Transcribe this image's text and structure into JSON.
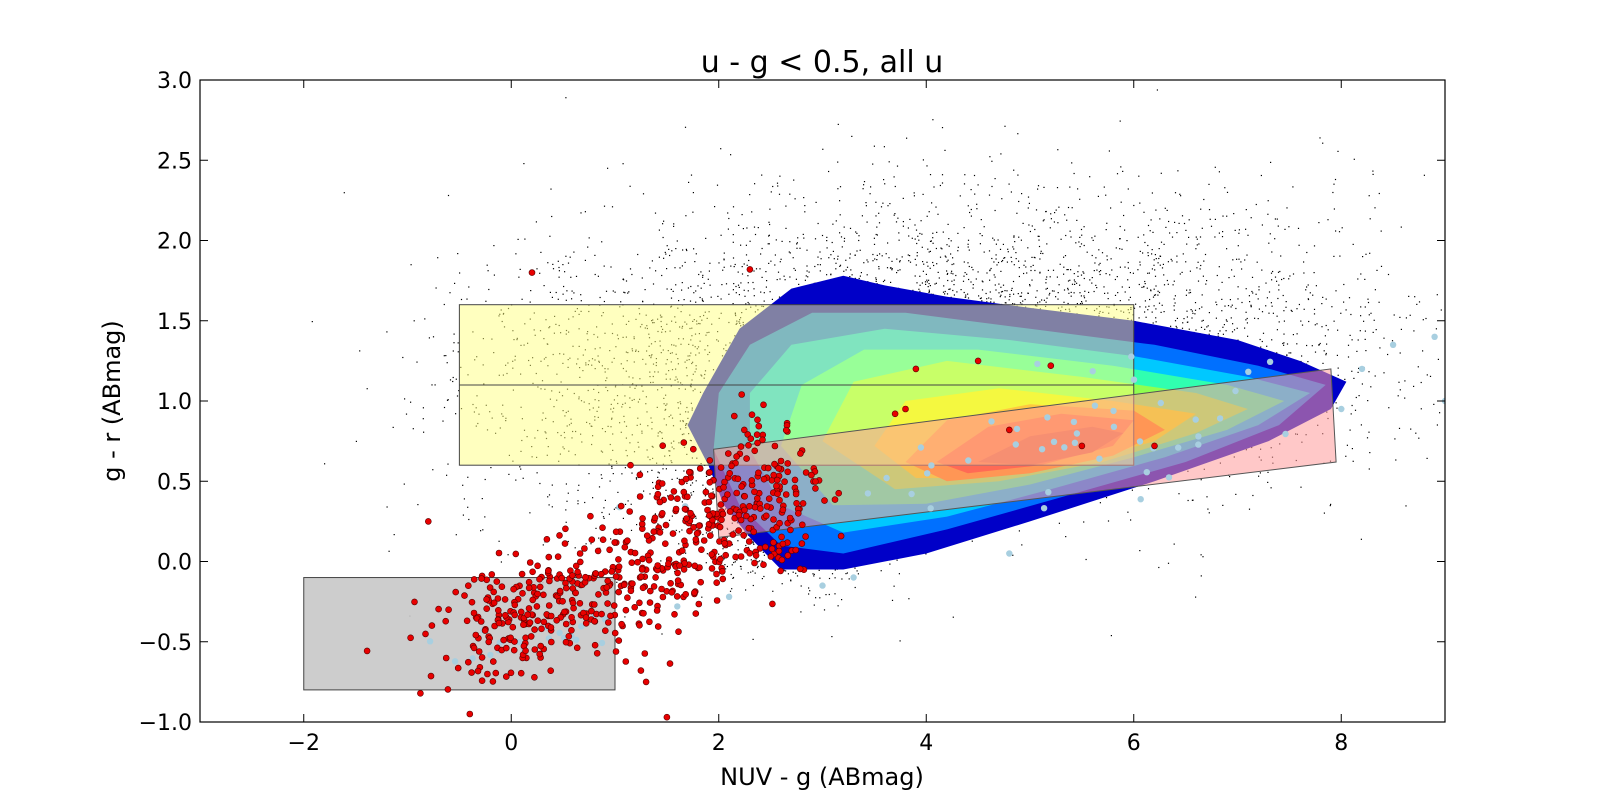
{
  "chart_data": {
    "type": "scatter",
    "title": "u - g < 0.5, all u",
    "xlabel": "NUV - g (ABmag)",
    "ylabel": "g - r (ABmag)",
    "xlim": [
      -3,
      9
    ],
    "ylim": [
      -1.0,
      3.0
    ],
    "xticks": [
      -2,
      0,
      2,
      4,
      6,
      8
    ],
    "xtick_labels": [
      "−2",
      "0",
      "2",
      "4",
      "6",
      "8"
    ],
    "yticks": [
      -1.0,
      -0.5,
      0.0,
      0.5,
      1.0,
      1.5,
      2.0,
      2.5,
      3.0
    ],
    "ytick_labels": [
      "−1.0",
      "−0.5",
      "0.0",
      "0.5",
      "1.0",
      "1.5",
      "2.0",
      "2.5",
      "3.0"
    ],
    "grid": false,
    "colors": {
      "background_points": "#000000",
      "red_points": "#e80000",
      "light_blue_points": "#a8cfe0",
      "yellow_box": "#ffff80",
      "gray_box": "#c8c8c8",
      "red_band": "#ff9a9a",
      "contour_outer": "#0000c8"
    },
    "regions": [
      {
        "name": "yellow box",
        "x": [
          -0.5,
          6.0
        ],
        "y": [
          0.6,
          1.6
        ],
        "color": "#ffff80"
      },
      {
        "name": "gray box",
        "x": [
          -2.0,
          1.0
        ],
        "y": [
          -0.8,
          -0.1
        ],
        "color": "#c8c8c8"
      },
      {
        "name": "red band",
        "polygon": [
          [
            1.95,
            0.7
          ],
          [
            7.9,
            1.2
          ],
          [
            7.95,
            0.62
          ],
          [
            2.0,
            0.15
          ]
        ],
        "color": "#ff9a9a"
      }
    ],
    "series": [
      {
        "kind": "contour",
        "levels": [
          {
            "color": "#0000c8",
            "polygon": [
              [
                1.9,
                0.6
              ],
              [
                1.7,
                0.85
              ],
              [
                1.85,
                1.05
              ],
              [
                2.2,
                1.45
              ],
              [
                2.7,
                1.7
              ],
              [
                3.2,
                1.78
              ],
              [
                3.6,
                1.72
              ],
              [
                4.2,
                1.65
              ],
              [
                5.0,
                1.58
              ],
              [
                6.0,
                1.5
              ],
              [
                7.0,
                1.38
              ],
              [
                7.6,
                1.25
              ],
              [
                8.05,
                1.12
              ],
              [
                7.9,
                0.95
              ],
              [
                7.3,
                0.75
              ],
              [
                6.2,
                0.5
              ],
              [
                5.0,
                0.25
              ],
              [
                4.0,
                0.05
              ],
              [
                3.2,
                -0.05
              ],
              [
                2.6,
                -0.05
              ],
              [
                2.3,
                0.15
              ],
              [
                2.05,
                0.35
              ]
            ]
          },
          {
            "color": "#0070ff",
            "polygon": [
              [
                1.95,
                0.7
              ],
              [
                2.0,
                1.05
              ],
              [
                2.3,
                1.35
              ],
              [
                2.9,
                1.55
              ],
              [
                3.8,
                1.55
              ],
              [
                5.0,
                1.45
              ],
              [
                6.2,
                1.35
              ],
              [
                7.2,
                1.22
              ],
              [
                7.85,
                1.1
              ],
              [
                7.4,
                0.85
              ],
              [
                6.5,
                0.62
              ],
              [
                5.3,
                0.4
              ],
              [
                4.2,
                0.2
              ],
              [
                3.2,
                0.05
              ],
              [
                2.6,
                0.1
              ],
              [
                2.2,
                0.35
              ]
            ]
          },
          {
            "color": "#00c8ff",
            "polygon": [
              [
                2.3,
                0.7
              ],
              [
                2.3,
                1.05
              ],
              [
                2.7,
                1.35
              ],
              [
                3.6,
                1.45
              ],
              [
                4.8,
                1.38
              ],
              [
                6.0,
                1.28
              ],
              [
                7.1,
                1.15
              ],
              [
                7.7,
                1.05
              ],
              [
                7.2,
                0.85
              ],
              [
                6.3,
                0.65
              ],
              [
                5.2,
                0.45
              ],
              [
                4.2,
                0.28
              ],
              [
                3.2,
                0.18
              ],
              [
                2.6,
                0.35
              ]
            ]
          },
          {
            "color": "#30ffb0",
            "polygon": [
              [
                2.6,
                0.72
              ],
              [
                2.8,
                1.1
              ],
              [
                3.4,
                1.32
              ],
              [
                4.5,
                1.32
              ],
              [
                5.8,
                1.22
              ],
              [
                6.9,
                1.1
              ],
              [
                7.45,
                1.0
              ],
              [
                6.9,
                0.82
              ],
              [
                6.0,
                0.65
              ],
              [
                5.0,
                0.48
              ],
              [
                4.0,
                0.36
              ],
              [
                3.1,
                0.35
              ]
            ]
          },
          {
            "color": "#90ff50",
            "polygon": [
              [
                3.0,
                0.75
              ],
              [
                3.3,
                1.12
              ],
              [
                4.2,
                1.25
              ],
              [
                5.5,
                1.15
              ],
              [
                6.6,
                1.05
              ],
              [
                7.1,
                0.95
              ],
              [
                6.6,
                0.8
              ],
              [
                5.7,
                0.62
              ],
              [
                4.7,
                0.5
              ],
              [
                3.7,
                0.45
              ]
            ]
          },
          {
            "color": "#e8f000",
            "polygon": [
              [
                3.5,
                0.72
              ],
              [
                3.8,
                1.0
              ],
              [
                4.7,
                1.08
              ],
              [
                5.8,
                1.0
              ],
              [
                6.6,
                0.92
              ],
              [
                6.2,
                0.75
              ],
              [
                5.4,
                0.6
              ],
              [
                4.5,
                0.52
              ],
              [
                3.9,
                0.52
              ]
            ]
          },
          {
            "color": "#ff9000",
            "polygon": [
              [
                3.8,
                0.62
              ],
              [
                4.2,
                0.88
              ],
              [
                5.0,
                0.98
              ],
              [
                6.0,
                0.94
              ],
              [
                6.3,
                0.82
              ],
              [
                5.8,
                0.66
              ],
              [
                5.0,
                0.55
              ],
              [
                4.2,
                0.5
              ]
            ]
          },
          {
            "color": "#ff3000",
            "polygon": [
              [
                4.1,
                0.62
              ],
              [
                4.6,
                0.84
              ],
              [
                5.3,
                0.92
              ],
              [
                6.0,
                0.88
              ],
              [
                5.8,
                0.72
              ],
              [
                5.1,
                0.6
              ],
              [
                4.4,
                0.55
              ]
            ]
          },
          {
            "color": "#d80000",
            "polygon": [
              [
                4.5,
                0.62
              ],
              [
                5.0,
                0.78
              ],
              [
                5.6,
                0.84
              ],
              [
                5.9,
                0.8
              ],
              [
                5.6,
                0.68
              ],
              [
                5.0,
                0.6
              ]
            ]
          }
        ]
      },
      {
        "name": "",
        "kind": "points",
        "color": "#e80000",
        "clusters": [
          {
            "center": [
              0.3,
              -0.3
            ],
            "spread": [
              0.55,
              0.18
            ],
            "slope": 0.18,
            "count": 260
          },
          {
            "center": [
              1.7,
              0.15
            ],
            "spread": [
              0.5,
              0.25
            ],
            "slope": 0.3,
            "count": 260
          },
          {
            "center": [
              2.5,
              0.45
            ],
            "spread": [
              0.25,
              0.25
            ],
            "slope": 0.0,
            "count": 120
          }
        ],
        "outliers": [
          [
            0.2,
            1.8
          ],
          [
            2.3,
            1.82
          ],
          [
            -0.8,
            0.25
          ],
          [
            1.25,
            -0.68
          ],
          [
            1.3,
            -0.75
          ],
          [
            1.5,
            -0.97
          ],
          [
            -0.4,
            -0.95
          ],
          [
            3.9,
            1.2
          ],
          [
            4.5,
            1.25
          ],
          [
            5.2,
            1.22
          ],
          [
            3.7,
            0.92
          ],
          [
            3.8,
            0.95
          ],
          [
            6.2,
            0.72
          ],
          [
            5.5,
            0.72
          ],
          [
            4.8,
            0.82
          ]
        ]
      },
      {
        "name": "",
        "kind": "points",
        "color": "#a8cfe0",
        "clusters": [
          {
            "center": [
              5.5,
              0.72
            ],
            "spread": [
              1.5,
              0.2
            ],
            "slope": 0.12,
            "count": 45
          },
          {
            "center": [
              0.3,
              -0.5
            ],
            "spread": [
              0.5,
              0.08
            ],
            "slope": 0.12,
            "count": 22
          }
        ],
        "outliers": [
          [
            8.2,
            1.2
          ],
          [
            8.5,
            1.35
          ],
          [
            8.9,
            1.4
          ],
          [
            9.0,
            1.0
          ],
          [
            8.0,
            0.95
          ],
          [
            3.0,
            -0.15
          ],
          [
            3.3,
            -0.1
          ],
          [
            4.8,
            0.05
          ],
          [
            1.6,
            -0.28
          ],
          [
            2.1,
            -0.22
          ]
        ]
      },
      {
        "name": "",
        "kind": "points",
        "color": "#000000",
        "count": 5200
      }
    ]
  }
}
